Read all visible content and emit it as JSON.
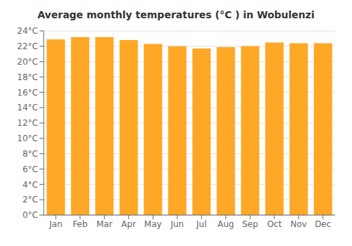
{
  "chart_data": {
    "type": "bar",
    "title": "Average monthly temperatures (°C ) in Wobulenzi",
    "categories": [
      "Jan",
      "Feb",
      "Mar",
      "Apr",
      "May",
      "Jun",
      "Jul",
      "Aug",
      "Sep",
      "Oct",
      "Nov",
      "Dec"
    ],
    "values": [
      22.9,
      23.2,
      23.2,
      22.8,
      22.3,
      22.0,
      21.7,
      21.9,
      22.0,
      22.5,
      22.4,
      22.4
    ],
    "color": "#FFA726",
    "ylim": [
      0,
      24
    ],
    "yticks": [
      {
        "value": 0,
        "label": "0°C"
      },
      {
        "value": 2,
        "label": "2°C"
      },
      {
        "value": 4,
        "label": "4°C"
      },
      {
        "value": 6,
        "label": "6°C"
      },
      {
        "value": 8,
        "label": "8°C"
      },
      {
        "value": 10,
        "label": "10°C"
      },
      {
        "value": 12,
        "label": "12°C"
      },
      {
        "value": 14,
        "label": "14°C"
      },
      {
        "value": 16,
        "label": "16°C"
      },
      {
        "value": 18,
        "label": "18°C"
      },
      {
        "value": 20,
        "label": "20°C"
      },
      {
        "value": 22,
        "label": "22°C"
      },
      {
        "value": 24,
        "label": "24°C"
      }
    ],
    "grid": true
  }
}
